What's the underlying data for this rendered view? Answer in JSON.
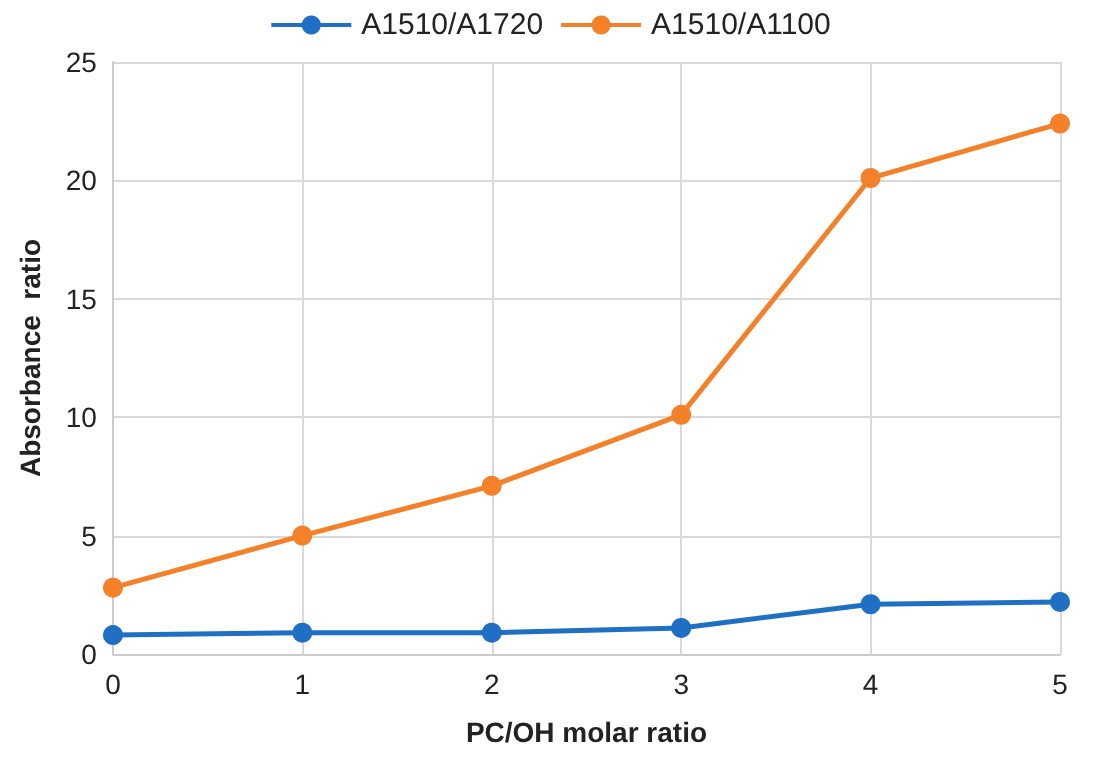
{
  "chart_data": {
    "type": "line",
    "xlabel": "PC/OH molar ratio",
    "ylabel": "Absorbance  ratio",
    "x": [
      0,
      1,
      2,
      3,
      4,
      5
    ],
    "series": [
      {
        "name": "A1510/A1720",
        "color": "#1f6fc5",
        "values": [
          0.8,
          0.9,
          0.9,
          1.1,
          2.1,
          2.2
        ]
      },
      {
        "name": "A1510/A1100",
        "color": "#f4802a",
        "values": [
          2.8,
          5.0,
          7.1,
          10.1,
          20.1,
          22.4
        ]
      }
    ],
    "xlim": [
      0,
      5
    ],
    "xticks": [
      0,
      1,
      2,
      3,
      4,
      5
    ],
    "ylim": [
      0,
      25
    ],
    "yticks": [
      0,
      5,
      10,
      15,
      20,
      25
    ],
    "grid": true,
    "legend": "top",
    "marker": "circle",
    "line_style": "solid"
  }
}
